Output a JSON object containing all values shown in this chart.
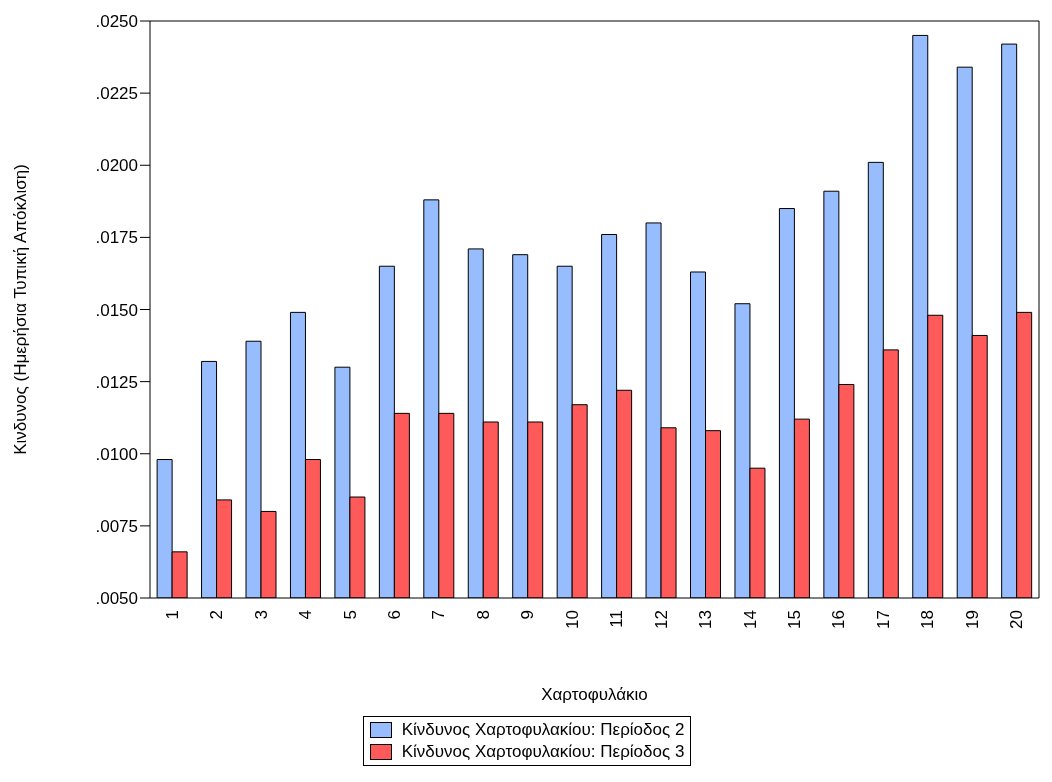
{
  "chart_data": {
    "type": "bar",
    "xlabel": "Χαρτοφυλάκιο",
    "ylabel": "Κινδυνος (Ημερήσια Τυπική Απόκλιση)",
    "categories": [
      "1",
      "2",
      "3",
      "4",
      "5",
      "6",
      "7",
      "8",
      "9",
      "10",
      "11",
      "12",
      "13",
      "14",
      "15",
      "16",
      "17",
      "18",
      "19",
      "20"
    ],
    "series": [
      {
        "name": "Κίνδυνος Χαρτοφυλακίου: Περίοδος 2",
        "color": "#97bdff",
        "values": [
          0.0098,
          0.0132,
          0.0139,
          0.0149,
          0.013,
          0.0165,
          0.0188,
          0.0171,
          0.0169,
          0.0165,
          0.0176,
          0.018,
          0.0163,
          0.0152,
          0.0185,
          0.0191,
          0.0201,
          0.0245,
          0.0234,
          0.0242
        ]
      },
      {
        "name": "Κίνδυνος Χαρτοφυλακίου: Περίοδος 3",
        "color": "#ff5a5a",
        "values": [
          0.0066,
          0.0084,
          0.008,
          0.0098,
          0.0085,
          0.0114,
          0.0114,
          0.0111,
          0.0111,
          0.0117,
          0.0122,
          0.0109,
          0.0108,
          0.0095,
          0.0112,
          0.0124,
          0.0136,
          0.0148,
          0.0141,
          0.0149
        ]
      }
    ],
    "ylim": [
      0.005,
      0.025
    ],
    "yticks": [
      {
        "value": 0.005,
        "label": ".0050"
      },
      {
        "value": 0.0075,
        "label": ".0075"
      },
      {
        "value": 0.01,
        "label": ".0100"
      },
      {
        "value": 0.0125,
        "label": ".0125"
      },
      {
        "value": 0.015,
        "label": ".0150"
      },
      {
        "value": 0.0175,
        "label": ".0175"
      },
      {
        "value": 0.02,
        "label": ".0200"
      },
      {
        "value": 0.0225,
        "label": ".0225"
      },
      {
        "value": 0.025,
        "label": ".0250"
      }
    ],
    "grid": false,
    "legend": "bottom"
  }
}
